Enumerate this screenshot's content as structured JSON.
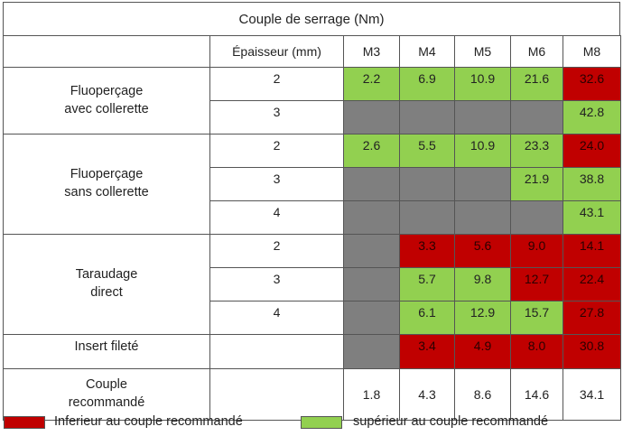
{
  "title": "Couple de serrage (Nm)",
  "header": {
    "epaisseur": "Épaisseur (mm)",
    "sizes": [
      "M3",
      "M4",
      "M5",
      "M6",
      "M8"
    ]
  },
  "colors": {
    "red": "#c00000",
    "green": "#92d050",
    "gray": "#7f7f7f"
  },
  "groups": {
    "fluo_avec": {
      "label_line1": "Fluoperçage",
      "label_line2": "avec collerette"
    },
    "fluo_sans": {
      "label_line1": "Fluoperçage",
      "label_line2": "sans collerette"
    },
    "taraudage": {
      "label_line1": "Taraudage",
      "label_line2": "direct"
    },
    "insert": {
      "label": "Insert fileté"
    },
    "reco": {
      "label_line1": "Couple",
      "label_line2": "recommandé"
    }
  },
  "rows": [
    {
      "ep": "2",
      "cells": [
        {
          "v": "2.2",
          "c": "green"
        },
        {
          "v": "6.9",
          "c": "green"
        },
        {
          "v": "10.9",
          "c": "green"
        },
        {
          "v": "21.6",
          "c": "green"
        },
        {
          "v": "32.6",
          "c": "red"
        }
      ]
    },
    {
      "ep": "3",
      "cells": [
        {
          "v": "",
          "c": "gray"
        },
        {
          "v": "",
          "c": "gray"
        },
        {
          "v": "",
          "c": "gray"
        },
        {
          "v": "",
          "c": "gray"
        },
        {
          "v": "42.8",
          "c": "green"
        }
      ]
    },
    {
      "ep": "2",
      "cells": [
        {
          "v": "2.6",
          "c": "green"
        },
        {
          "v": "5.5",
          "c": "green"
        },
        {
          "v": "10.9",
          "c": "green"
        },
        {
          "v": "23.3",
          "c": "green"
        },
        {
          "v": "24.0",
          "c": "red"
        }
      ]
    },
    {
      "ep": "3",
      "cells": [
        {
          "v": "",
          "c": "gray"
        },
        {
          "v": "",
          "c": "gray"
        },
        {
          "v": "",
          "c": "gray"
        },
        {
          "v": "21.9",
          "c": "green"
        },
        {
          "v": "38.8",
          "c": "green"
        }
      ]
    },
    {
      "ep": "4",
      "cells": [
        {
          "v": "",
          "c": "gray"
        },
        {
          "v": "",
          "c": "gray"
        },
        {
          "v": "",
          "c": "gray"
        },
        {
          "v": "",
          "c": "gray"
        },
        {
          "v": "43.1",
          "c": "green"
        }
      ]
    },
    {
      "ep": "2",
      "cells": [
        {
          "v": "",
          "c": "gray"
        },
        {
          "v": "3.3",
          "c": "red"
        },
        {
          "v": "5.6",
          "c": "red"
        },
        {
          "v": "9.0",
          "c": "red"
        },
        {
          "v": "14.1",
          "c": "red"
        }
      ]
    },
    {
      "ep": "3",
      "cells": [
        {
          "v": "",
          "c": "gray"
        },
        {
          "v": "5.7",
          "c": "green"
        },
        {
          "v": "9.8",
          "c": "green"
        },
        {
          "v": "12.7",
          "c": "red"
        },
        {
          "v": "22.4",
          "c": "red"
        }
      ]
    },
    {
      "ep": "4",
      "cells": [
        {
          "v": "",
          "c": "gray"
        },
        {
          "v": "6.1",
          "c": "green"
        },
        {
          "v": "12.9",
          "c": "green"
        },
        {
          "v": "15.7",
          "c": "green"
        },
        {
          "v": "27.8",
          "c": "red"
        }
      ]
    },
    {
      "ep": "",
      "cells": [
        {
          "v": "",
          "c": "gray"
        },
        {
          "v": "3.4",
          "c": "red"
        },
        {
          "v": "4.9",
          "c": "red"
        },
        {
          "v": "8.0",
          "c": "red"
        },
        {
          "v": "30.8",
          "c": "red"
        }
      ]
    },
    {
      "ep": "",
      "cells": [
        {
          "v": "1.8",
          "c": "white"
        },
        {
          "v": "4.3",
          "c": "white"
        },
        {
          "v": "8.6",
          "c": "white"
        },
        {
          "v": "14.6",
          "c": "white"
        },
        {
          "v": "34.1",
          "c": "white"
        }
      ]
    }
  ],
  "legend": {
    "red_label": "Inferieur au couple recommandé",
    "green_label": "supérieur au couple recommandé"
  }
}
